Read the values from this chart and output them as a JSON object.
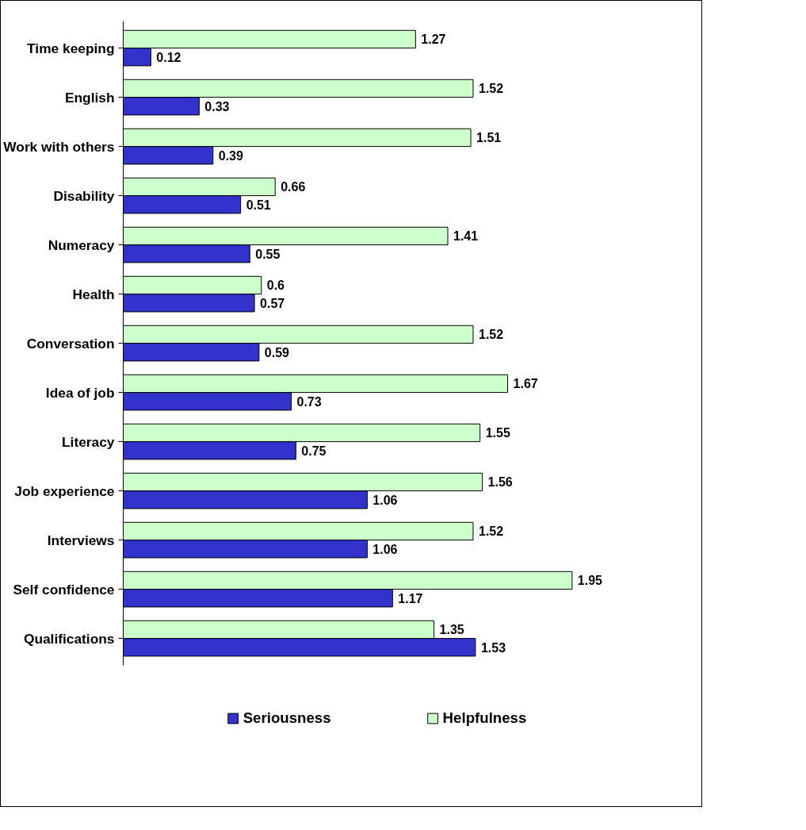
{
  "chart_data": {
    "type": "bar",
    "orientation": "horizontal",
    "categories": [
      "Time keeping",
      "English",
      "Work with others",
      "Disability",
      "Numeracy",
      "Health",
      "Conversation",
      "Idea of job",
      "Literacy",
      "Job experience",
      "Interviews",
      "Self confidence",
      "Qualifications"
    ],
    "series": [
      {
        "name": "Seriousness",
        "color": "#3333cc",
        "values": [
          0.12,
          0.33,
          0.39,
          0.51,
          0.55,
          0.57,
          0.59,
          0.73,
          0.75,
          1.06,
          1.06,
          1.17,
          1.53
        ]
      },
      {
        "name": "Helpfulness",
        "color": "#ccffcc",
        "values": [
          1.27,
          1.52,
          1.51,
          0.66,
          1.41,
          0.6,
          1.52,
          1.67,
          1.55,
          1.56,
          1.52,
          1.95,
          1.35
        ]
      }
    ],
    "data_labels": true,
    "legend": "bottom",
    "grid": false
  }
}
